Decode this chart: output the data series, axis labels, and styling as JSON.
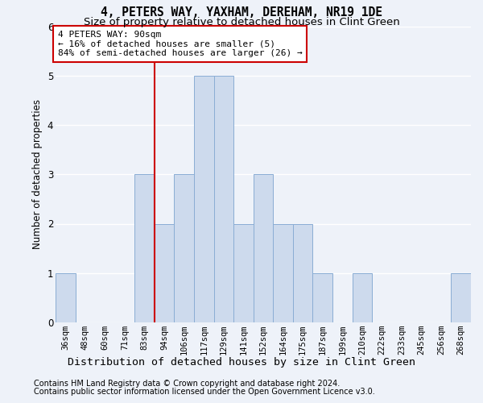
{
  "title": "4, PETERS WAY, YAXHAM, DEREHAM, NR19 1DE",
  "subtitle": "Size of property relative to detached houses in Clint Green",
  "xlabel_bottom": "Distribution of detached houses by size in Clint Green",
  "ylabel": "Number of detached properties",
  "categories": [
    "36sqm",
    "48sqm",
    "60sqm",
    "71sqm",
    "83sqm",
    "94sqm",
    "106sqm",
    "117sqm",
    "129sqm",
    "141sqm",
    "152sqm",
    "164sqm",
    "175sqm",
    "187sqm",
    "199sqm",
    "210sqm",
    "222sqm",
    "233sqm",
    "245sqm",
    "256sqm",
    "268sqm"
  ],
  "values": [
    1,
    0,
    0,
    0,
    3,
    2,
    3,
    5,
    5,
    2,
    3,
    2,
    2,
    1,
    0,
    1,
    0,
    0,
    0,
    0,
    1
  ],
  "bar_color": "#cddaed",
  "bar_edge_color": "#8aadd4",
  "red_line_index": 5,
  "annotation_text": "4 PETERS WAY: 90sqm\n← 16% of detached houses are smaller (5)\n84% of semi-detached houses are larger (26) →",
  "annotation_box_color": "#ffffff",
  "annotation_box_edge_color": "#cc0000",
  "red_line_color": "#cc0000",
  "ylim": [
    0,
    6
  ],
  "yticks": [
    0,
    1,
    2,
    3,
    4,
    5,
    6
  ],
  "footer_line1": "Contains HM Land Registry data © Crown copyright and database right 2024.",
  "footer_line2": "Contains public sector information licensed under the Open Government Licence v3.0.",
  "background_color": "#eef2f9",
  "grid_color": "#ffffff",
  "title_fontsize": 10.5,
  "subtitle_fontsize": 9.5,
  "ylabel_fontsize": 8.5,
  "xlabel_fontsize": 9.5,
  "tick_fontsize": 7.5,
  "annotation_fontsize": 8,
  "footer_fontsize": 7
}
